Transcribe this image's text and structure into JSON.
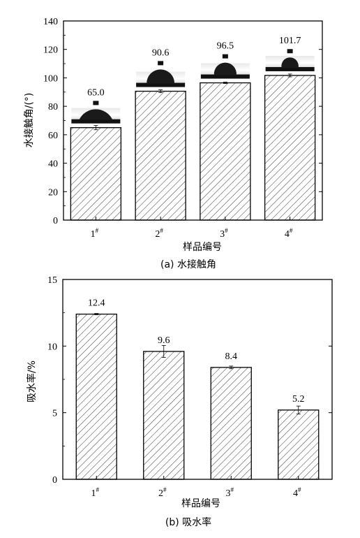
{
  "chart_data": [
    {
      "type": "bar",
      "caption": "(a) 水接触角",
      "xlabel": "样品编号",
      "ylabel": "水接触角/(°)",
      "categories": [
        "1#",
        "2#",
        "3#",
        "4#"
      ],
      "values": [
        65.0,
        90.6,
        96.5,
        101.7
      ],
      "value_labels": [
        "65.0",
        "90.6",
        "96.5",
        "101.7"
      ],
      "errors": [
        1.5,
        1.0,
        0.5,
        1.0
      ],
      "ylim": [
        0,
        140
      ],
      "yticks": [
        0,
        20,
        40,
        60,
        80,
        100,
        120,
        140
      ],
      "grid": false,
      "bar_fill": "hatched",
      "droplet_insets": true
    },
    {
      "type": "bar",
      "caption": "(b) 吸水率",
      "xlabel": "样品编号",
      "ylabel": "吸水率/%",
      "categories": [
        "1#",
        "2#",
        "3#",
        "4#"
      ],
      "values": [
        12.4,
        9.6,
        8.4,
        5.2
      ],
      "value_labels": [
        "12.4",
        "9.6",
        "8.4",
        "5.2"
      ],
      "errors": [
        0.05,
        0.45,
        0.1,
        0.3
      ],
      "ylim": [
        0,
        15
      ],
      "yticks": [
        0,
        5,
        10,
        15
      ],
      "grid": false,
      "bar_fill": "hatched"
    }
  ],
  "colors": {
    "stroke": "#000000",
    "hatch": "#555555",
    "background": "#ffffff"
  }
}
